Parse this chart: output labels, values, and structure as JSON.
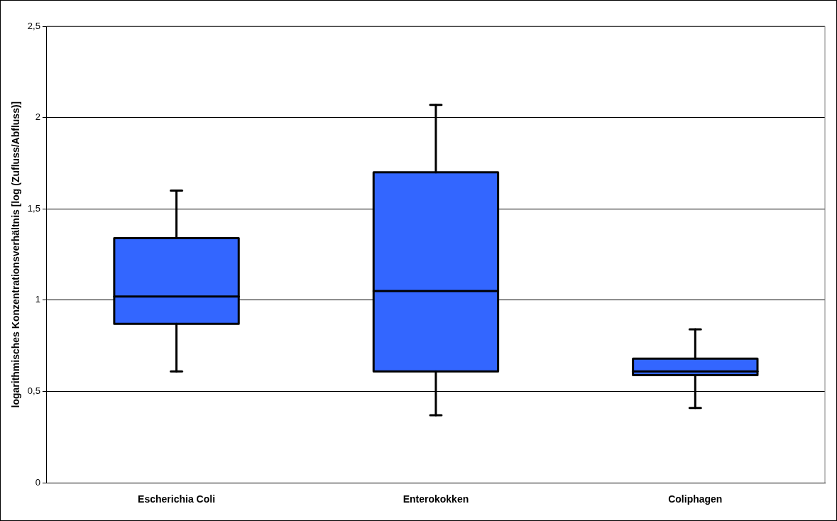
{
  "chart_data": {
    "type": "box",
    "ylabel": "logarithmisches Konzentrationsverhältnis [log (Zufluss/Abfluss)]",
    "categories": [
      "Escherichia Coli",
      "Enterokokken",
      "Coliphagen"
    ],
    "color": "#3366ff",
    "boxes": [
      {
        "low": 0.61,
        "q1": 0.87,
        "median": 1.02,
        "q3": 1.34,
        "high": 1.6
      },
      {
        "low": 0.37,
        "q1": 0.61,
        "median": 1.05,
        "q3": 1.7,
        "high": 2.07
      },
      {
        "low": 0.41,
        "q1": 0.59,
        "median": 0.61,
        "q3": 0.68,
        "high": 0.84
      }
    ],
    "ylim": [
      0,
      2.5
    ],
    "yticks": [
      {
        "value": 0,
        "label": "0"
      },
      {
        "value": 0.5,
        "label": "0,5"
      },
      {
        "value": 1,
        "label": "1"
      },
      {
        "value": 1.5,
        "label": "1,5"
      },
      {
        "value": 2,
        "label": "2"
      },
      {
        "value": 2.5,
        "label": "2,5"
      }
    ],
    "grid": "y"
  }
}
